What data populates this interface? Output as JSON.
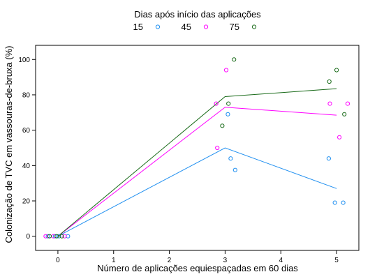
{
  "chart_data": {
    "type": "scatter",
    "legend_title": "Dias após início das aplicações",
    "legend_position": "top",
    "xlabel": "Número de aplicações equiespaçadas em 60 dias",
    "ylabel": "Colonização de TVC em vassouras-de-bruxa (%)",
    "xlim": [
      -0.4,
      5.4
    ],
    "ylim": [
      -8,
      108
    ],
    "x_ticks": [
      0,
      1,
      2,
      3,
      4,
      5
    ],
    "y_ticks": [
      0,
      20,
      40,
      60,
      80,
      100
    ],
    "grid": false,
    "series": [
      {
        "name": "15",
        "color": "#1f8ff0",
        "points": [
          {
            "x": -0.18,
            "y": 0
          },
          {
            "x": -0.05,
            "y": 0
          },
          {
            "x": 0.02,
            "y": 0
          },
          {
            "x": 0.18,
            "y": 0
          },
          {
            "x": 3.05,
            "y": 69
          },
          {
            "x": 3.1,
            "y": 44
          },
          {
            "x": 3.18,
            "y": 37.5
          },
          {
            "x": 4.86,
            "y": 44
          },
          {
            "x": 4.97,
            "y": 19
          },
          {
            "x": 5.12,
            "y": 19
          }
        ],
        "line": [
          {
            "x": 0,
            "y": 0
          },
          {
            "x": 3,
            "y": 50
          },
          {
            "x": 5,
            "y": 27
          }
        ]
      },
      {
        "name": "45",
        "color": "#ff00ff",
        "points": [
          {
            "x": -0.22,
            "y": 0
          },
          {
            "x": -0.08,
            "y": 0
          },
          {
            "x": 0.12,
            "y": 0
          },
          {
            "x": 2.84,
            "y": 75
          },
          {
            "x": 2.86,
            "y": 50
          },
          {
            "x": 3.02,
            "y": 94
          },
          {
            "x": 4.88,
            "y": 75
          },
          {
            "x": 5.05,
            "y": 56
          },
          {
            "x": 5.2,
            "y": 75
          }
        ],
        "line": [
          {
            "x": 0,
            "y": 0
          },
          {
            "x": 3,
            "y": 73
          },
          {
            "x": 5,
            "y": 68.5
          }
        ]
      },
      {
        "name": "75",
        "color": "#1a6b1a",
        "points": [
          {
            "x": -0.15,
            "y": 0
          },
          {
            "x": -0.02,
            "y": 0
          },
          {
            "x": 0.07,
            "y": 0
          },
          {
            "x": 2.95,
            "y": 62.5
          },
          {
            "x": 3.06,
            "y": 75
          },
          {
            "x": 3.16,
            "y": 100
          },
          {
            "x": 4.87,
            "y": 87.5
          },
          {
            "x": 5.0,
            "y": 94
          },
          {
            "x": 5.14,
            "y": 69
          }
        ],
        "line": [
          {
            "x": 0,
            "y": 0
          },
          {
            "x": 3,
            "y": 79
          },
          {
            "x": 5,
            "y": 83.5
          }
        ]
      }
    ]
  }
}
